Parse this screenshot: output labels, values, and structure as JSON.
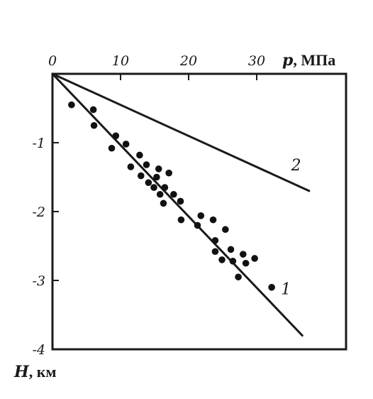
{
  "chart_data": {
    "type": "scatter",
    "title": "",
    "xlabel_var": "p",
    "xlabel_unit": ", МПа",
    "ylabel_var": "H",
    "ylabel_unit": ", км",
    "xlim": [
      0,
      38
    ],
    "ylim": [
      -4,
      0
    ],
    "x_axis_position": "top",
    "grid": false,
    "x_ticks": [
      {
        "value": 0,
        "label": "0"
      },
      {
        "value": 10,
        "label": "10"
      },
      {
        "value": 20,
        "label": "20"
      },
      {
        "value": 30,
        "label": "30"
      }
    ],
    "y_ticks": [
      {
        "value": -1,
        "label": "-1"
      },
      {
        "value": -2,
        "label": "-2"
      },
      {
        "value": -3,
        "label": "-3"
      },
      {
        "value": -4,
        "label": "-4"
      }
    ],
    "series": [
      {
        "name": "1",
        "kind": "line",
        "x": [
          0,
          36.7
        ],
        "y": [
          0,
          -3.8
        ]
      },
      {
        "name": "2",
        "kind": "line",
        "x": [
          0,
          37.7
        ],
        "y": [
          0,
          -1.7
        ]
      },
      {
        "name": "",
        "kind": "scatter",
        "points": [
          [
            2.8,
            -0.45
          ],
          [
            6.0,
            -0.52
          ],
          [
            6.1,
            -0.75
          ],
          [
            8.7,
            -1.08
          ],
          [
            9.3,
            -0.9
          ],
          [
            10.8,
            -1.02
          ],
          [
            11.5,
            -1.35
          ],
          [
            12.8,
            -1.18
          ],
          [
            13.0,
            -1.48
          ],
          [
            13.8,
            -1.32
          ],
          [
            14.1,
            -1.58
          ],
          [
            14.9,
            -1.65
          ],
          [
            15.3,
            -1.5
          ],
          [
            15.6,
            -1.38
          ],
          [
            15.8,
            -1.75
          ],
          [
            16.3,
            -1.88
          ],
          [
            16.5,
            -1.65
          ],
          [
            17.1,
            -1.44
          ],
          [
            17.8,
            -1.75
          ],
          [
            18.8,
            -1.85
          ],
          [
            18.9,
            -2.12
          ],
          [
            21.3,
            -2.2
          ],
          [
            21.8,
            -2.06
          ],
          [
            23.6,
            -2.12
          ],
          [
            23.9,
            -2.42
          ],
          [
            23.9,
            -2.58
          ],
          [
            24.9,
            -2.7
          ],
          [
            25.4,
            -2.26
          ],
          [
            26.2,
            -2.55
          ],
          [
            26.5,
            -2.72
          ],
          [
            27.3,
            -2.95
          ],
          [
            28.0,
            -2.62
          ],
          [
            28.4,
            -2.75
          ],
          [
            29.7,
            -2.68
          ],
          [
            32.2,
            -3.1
          ]
        ]
      }
    ],
    "line_labels": [
      {
        "text": "1",
        "x": 34.3,
        "y": -3.2
      },
      {
        "text": "2",
        "x": 35.8,
        "y": -1.4
      }
    ]
  }
}
